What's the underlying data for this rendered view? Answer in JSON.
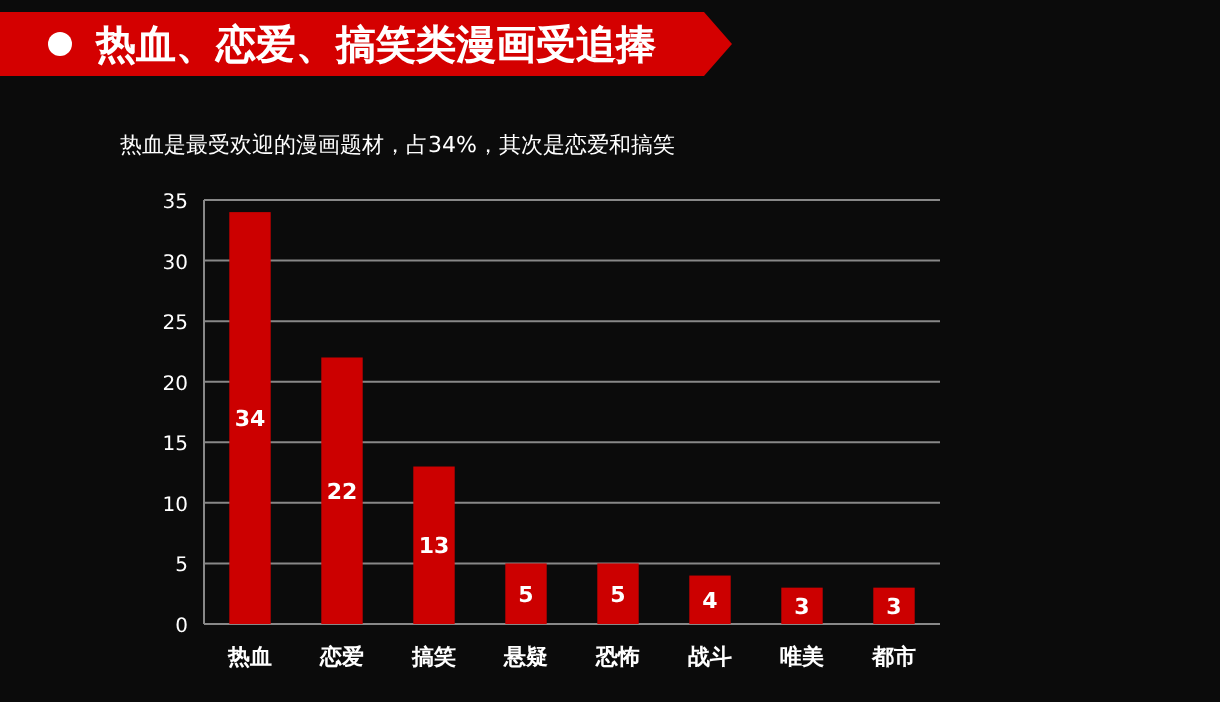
{
  "chart_data": {
    "type": "bar",
    "title": "热血、恋爱、搞笑类漫画受追捧",
    "subtitle": "热血是最受欢迎的漫画题材，占34%，其次是恋爱和搞笑",
    "categories": [
      "热血",
      "恋爱",
      "搞笑",
      "悬疑",
      "恐怖",
      "战斗",
      "唯美",
      "都市"
    ],
    "values": [
      34,
      22,
      13,
      5,
      5,
      4,
      3,
      3
    ],
    "color": "#cc0000",
    "ylim": [
      0,
      35
    ],
    "yticks": [
      0,
      5,
      10,
      15,
      20,
      25,
      30,
      35
    ],
    "grid": "y",
    "data_labels": true
  }
}
